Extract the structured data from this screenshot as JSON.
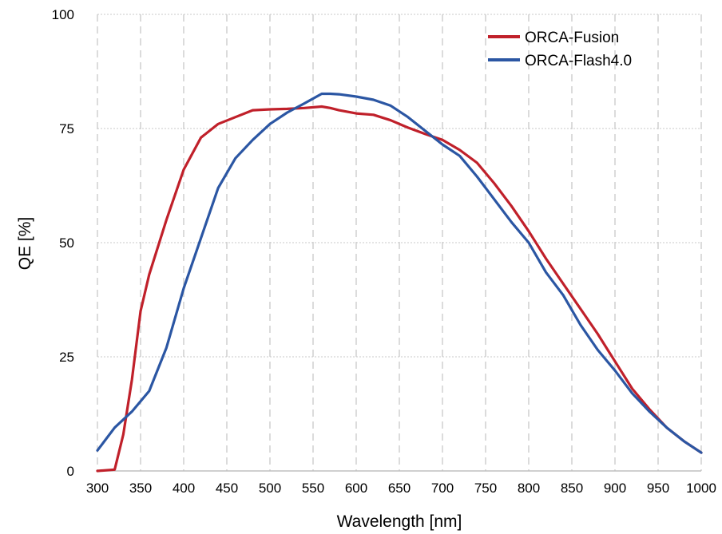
{
  "chart_data": {
    "type": "line",
    "xlabel": "Wavelength [nm]",
    "ylabel": "QE [%]",
    "xlim": [
      300,
      1000
    ],
    "ylim": [
      0,
      100
    ],
    "x_ticks": [
      "300",
      "350",
      "400",
      "450",
      "500",
      "550",
      "600",
      "650",
      "700",
      "750",
      "800",
      "850",
      "900",
      "950",
      "1000"
    ],
    "y_ticks": [
      "0",
      "25",
      "50",
      "75",
      "100"
    ],
    "grid": "vertical dashed at every x tick, horizontal dotted at y ticks",
    "legend_position": "top-right",
    "series": [
      {
        "name": "ORCA-Fusion",
        "color": "#c0202a",
        "x": [
          300,
          320,
          330,
          340,
          350,
          360,
          380,
          400,
          420,
          440,
          460,
          480,
          500,
          520,
          540,
          560,
          570,
          580,
          600,
          620,
          640,
          660,
          680,
          700,
          720,
          740,
          760,
          780,
          800,
          820,
          840,
          860,
          880,
          900,
          920,
          940,
          960,
          980,
          1000
        ],
        "y": [
          0,
          0.3,
          8,
          20,
          35,
          43,
          55,
          66,
          73,
          76,
          77.5,
          79,
          79.2,
          79.3,
          79.5,
          79.8,
          79.5,
          79,
          78.3,
          78,
          76.8,
          75.2,
          73.8,
          72.5,
          70.3,
          67.5,
          63,
          58,
          52.5,
          46.5,
          41,
          35.5,
          30,
          24,
          18,
          13.5,
          9.5,
          6.5,
          4
        ]
      },
      {
        "name": "ORCA-Flash4.0",
        "color": "#2b56a3",
        "x": [
          300,
          320,
          340,
          360,
          380,
          400,
          420,
          440,
          460,
          480,
          500,
          520,
          540,
          560,
          570,
          580,
          600,
          620,
          640,
          660,
          680,
          700,
          720,
          740,
          760,
          780,
          800,
          820,
          840,
          860,
          880,
          900,
          920,
          940,
          960,
          980,
          1000
        ],
        "y": [
          4.5,
          9.5,
          13,
          17.5,
          27,
          40,
          51,
          62,
          68.5,
          72.5,
          76,
          78.5,
          80.5,
          82.6,
          82.6,
          82.5,
          82,
          81.3,
          80,
          77.5,
          74.5,
          71.5,
          69,
          64.5,
          59.5,
          54.5,
          50,
          43.5,
          38.5,
          32,
          26.5,
          22,
          17,
          13,
          9.5,
          6.5,
          4
        ]
      }
    ]
  }
}
